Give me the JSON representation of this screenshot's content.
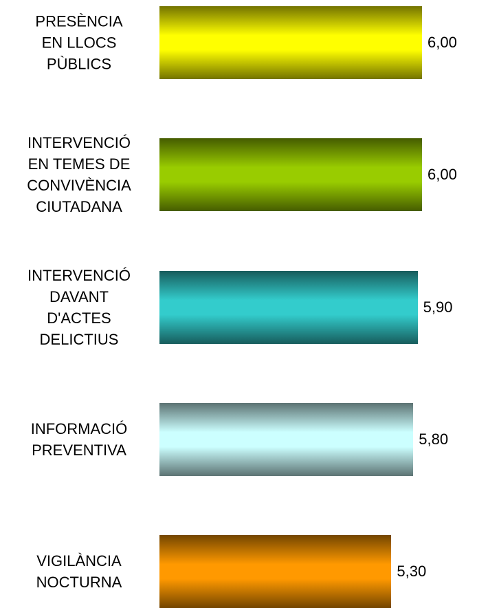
{
  "chart_data": {
    "type": "bar",
    "orientation": "horizontal",
    "categories": [
      "PRESÈNCIA\nEN LLOCS\nPÙBLICS",
      "INTERVENCIÓ\nEN TEMES DE\nCONVIVÈNCIA\nCIUTADANA",
      "INTERVENCIÓ\nDAVANT\nD'ACTES\nDELICTIUS",
      "INFORMACIÓ\nPREVENTIVA",
      "VIGILÀNCIA\nNOCTURNA"
    ],
    "values": [
      6.0,
      6.0,
      5.9,
      5.8,
      5.3
    ],
    "value_labels": [
      "6,00",
      "6,00",
      "5,90",
      "5,80",
      "5,30"
    ],
    "colors": [
      "#ffff00",
      "#99cc00",
      "#33cccc",
      "#ccffff",
      "#ff9900"
    ],
    "xlim": [
      0,
      6
    ]
  }
}
